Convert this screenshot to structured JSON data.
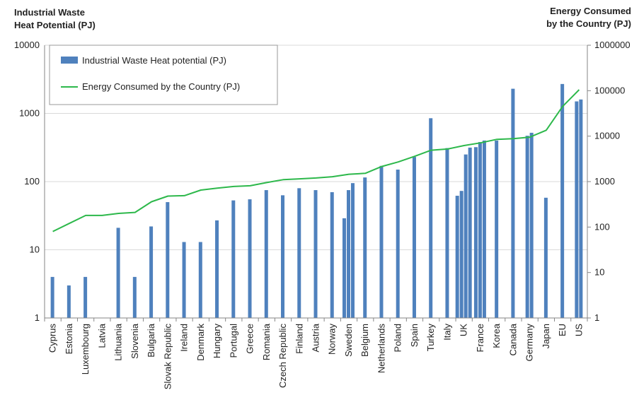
{
  "chart_data": {
    "type": "bar",
    "y_left_label": [
      "Industrial Waste",
      "Heat Potential (PJ)"
    ],
    "y_right_label": [
      "Energy Consumed",
      "by the Country (PJ)"
    ],
    "y_left_ticks": [
      "1",
      "10",
      "100",
      "1000",
      "10000"
    ],
    "y_right_ticks": [
      "1",
      "10",
      "100",
      "1000",
      "10000",
      "100000",
      "1000000"
    ],
    "y_left_scale": "log",
    "y_right_scale": "log",
    "ylim_left": [
      1,
      10000
    ],
    "ylim_right": [
      1,
      1000000
    ],
    "grid": "horizontal",
    "legend_position": "top-left",
    "colors": {
      "bar": "#4f81bd",
      "line": "#2db84b"
    },
    "categories": [
      "Cyprus",
      "Estonia",
      "Luxembourg",
      "Latvia",
      "Lithuania",
      "Slovenia",
      "Bulgaria",
      "Slovak Republic",
      "Ireland",
      "Denmark",
      "Hungary",
      "Portugal",
      "Greece",
      "Romania",
      "Czech Republic",
      "Finland",
      "Austria",
      "Norway",
      "Sweden",
      "Belgium",
      "Netherlands",
      "Poland",
      "Spain",
      "Turkey",
      "Italy",
      "UK",
      "France",
      "Korea",
      "Canada",
      "Germany",
      "Japan",
      "EU",
      "US"
    ],
    "series": [
      {
        "name": "Industrial Waste Heat potential (PJ)",
        "type": "bar",
        "axis": "left",
        "values": [
          [
            4
          ],
          [
            3
          ],
          [
            4
          ],
          [],
          [
            21
          ],
          [
            4
          ],
          [
            22
          ],
          [
            50
          ],
          [
            13
          ],
          [
            13
          ],
          [
            27
          ],
          [
            53
          ],
          [
            55
          ],
          [
            75
          ],
          [
            63
          ],
          [
            80
          ],
          [
            75
          ],
          [
            70
          ],
          [
            29,
            75,
            95
          ],
          [
            115
          ],
          [
            170
          ],
          [
            150
          ],
          [
            230
          ],
          [
            850
          ],
          [
            310
          ],
          [
            62,
            73,
            250,
            315
          ],
          [
            320,
            380,
            400
          ],
          [
            400
          ],
          [
            2300
          ],
          [
            470,
            520
          ],
          [
            58
          ],
          [
            2700
          ],
          [
            1500,
            1600
          ]
        ]
      },
      {
        "name": "Energy Consumed by the Country (PJ)",
        "type": "line",
        "axis": "right",
        "values": [
          80,
          120,
          180,
          180,
          200,
          210,
          360,
          480,
          490,
          650,
          720,
          780,
          810,
          950,
          1100,
          1150,
          1200,
          1280,
          1450,
          1520,
          2150,
          2700,
          3600,
          4900,
          5200,
          6200,
          7100,
          8500,
          8800,
          9500,
          13500,
          45000,
          105000
        ]
      }
    ]
  }
}
